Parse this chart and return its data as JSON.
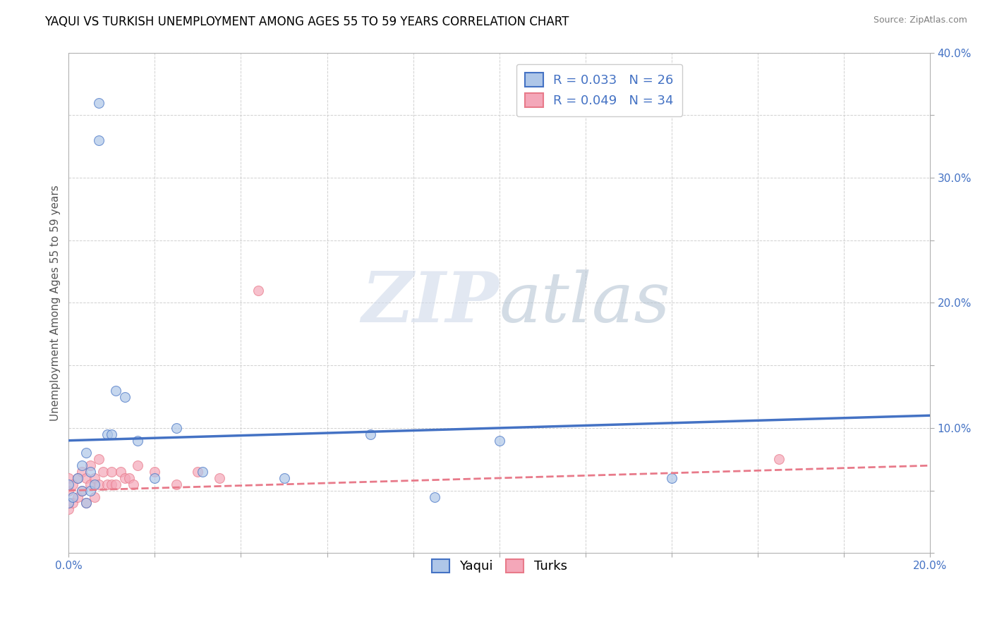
{
  "title": "YAQUI VS TURKISH UNEMPLOYMENT AMONG AGES 55 TO 59 YEARS CORRELATION CHART",
  "source": "Source: ZipAtlas.com",
  "ylabel": "Unemployment Among Ages 55 to 59 years",
  "xlim": [
    0.0,
    0.2
  ],
  "ylim": [
    0.0,
    0.4
  ],
  "xticks": [
    0.0,
    0.02,
    0.04,
    0.06,
    0.08,
    0.1,
    0.12,
    0.14,
    0.16,
    0.18,
    0.2
  ],
  "yticks": [
    0.0,
    0.05,
    0.1,
    0.15,
    0.2,
    0.25,
    0.3,
    0.35,
    0.4
  ],
  "xtick_labels": [
    "0.0%",
    "",
    "",
    "",
    "",
    "",
    "",
    "",
    "",
    "",
    "20.0%"
  ],
  "ytick_labels": [
    "",
    "",
    "10.0%",
    "",
    "20.0%",
    "",
    "30.0%",
    "",
    "40.0%"
  ],
  "yaqui_color": "#aec6e8",
  "turks_color": "#f4a7b9",
  "yaqui_line_color": "#4472c4",
  "turks_line_color": "#e87a8a",
  "background_color": "#ffffff",
  "grid_color": "#cccccc",
  "legend_R_yaqui": "R = 0.033",
  "legend_N_yaqui": "N = 26",
  "legend_R_turks": "R = 0.049",
  "legend_N_turks": "N = 34",
  "yaqui_scatter_x": [
    0.0,
    0.0,
    0.001,
    0.002,
    0.003,
    0.003,
    0.004,
    0.004,
    0.005,
    0.005,
    0.006,
    0.007,
    0.007,
    0.009,
    0.01,
    0.011,
    0.013,
    0.016,
    0.02,
    0.025,
    0.031,
    0.05,
    0.07,
    0.085,
    0.1,
    0.14
  ],
  "yaqui_scatter_y": [
    0.04,
    0.055,
    0.045,
    0.06,
    0.05,
    0.07,
    0.04,
    0.08,
    0.05,
    0.065,
    0.055,
    0.36,
    0.33,
    0.095,
    0.095,
    0.13,
    0.125,
    0.09,
    0.06,
    0.1,
    0.065,
    0.06,
    0.095,
    0.045,
    0.09,
    0.06
  ],
  "turks_scatter_x": [
    0.0,
    0.0,
    0.0,
    0.0,
    0.001,
    0.001,
    0.002,
    0.002,
    0.003,
    0.003,
    0.004,
    0.004,
    0.005,
    0.005,
    0.006,
    0.006,
    0.007,
    0.007,
    0.008,
    0.009,
    0.01,
    0.01,
    0.011,
    0.012,
    0.013,
    0.014,
    0.015,
    0.016,
    0.02,
    0.025,
    0.03,
    0.035,
    0.044,
    0.165
  ],
  "turks_scatter_y": [
    0.035,
    0.04,
    0.05,
    0.06,
    0.04,
    0.055,
    0.045,
    0.06,
    0.05,
    0.065,
    0.04,
    0.06,
    0.055,
    0.07,
    0.045,
    0.06,
    0.055,
    0.075,
    0.065,
    0.055,
    0.055,
    0.065,
    0.055,
    0.065,
    0.06,
    0.06,
    0.055,
    0.07,
    0.065,
    0.055,
    0.065,
    0.06,
    0.21,
    0.075
  ],
  "yaqui_trend_x": [
    0.0,
    0.2
  ],
  "yaqui_trend_y": [
    0.09,
    0.11
  ],
  "turks_trend_x": [
    0.0,
    0.2
  ],
  "turks_trend_y": [
    0.05,
    0.07
  ],
  "watermark_zip": "ZIP",
  "watermark_atlas": "atlas",
  "title_fontsize": 12,
  "label_fontsize": 11,
  "tick_fontsize": 11,
  "legend_fontsize": 13
}
